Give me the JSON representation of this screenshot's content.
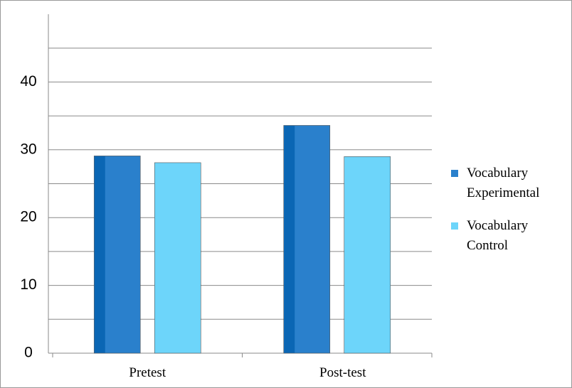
{
  "chart_data": {
    "type": "bar",
    "categories": [
      "Pretest",
      "Post-test"
    ],
    "series": [
      {
        "name": "Vocabulary Experimental",
        "color": "#2a80cc",
        "values": [
          29.1,
          33.6
        ]
      },
      {
        "name": "Vocabulary Control",
        "color": "#6dd5fa",
        "values": [
          28.1,
          29.0
        ]
      }
    ],
    "ylim": [
      0,
      50
    ],
    "yticks": [
      0,
      10,
      20,
      30,
      40
    ],
    "ygrid": [
      5,
      10,
      15,
      20,
      25,
      30,
      35,
      40,
      45
    ],
    "grid": true,
    "legend": "right"
  }
}
